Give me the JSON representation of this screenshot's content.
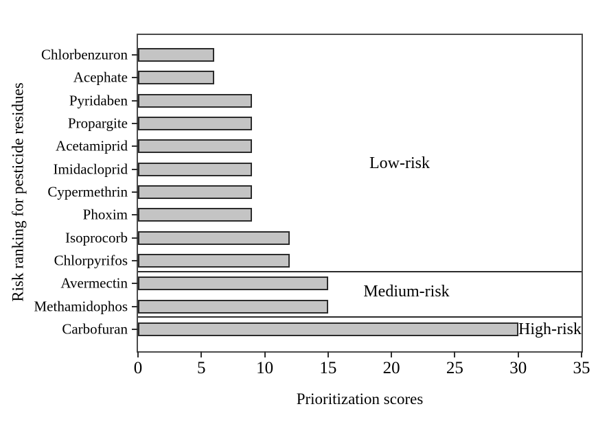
{
  "chart_data": {
    "type": "bar",
    "orientation": "horizontal",
    "title": "",
    "xlabel": "Prioritization scores",
    "ylabel": "Risk ranking for pesticide residues",
    "categories": [
      "Chlorbenzuron",
      "Acephate",
      "Pyridaben",
      "Propargite",
      "Acetamiprid",
      "Imidacloprid",
      "Cypermethrin",
      "Phoxim",
      "Isoprocorb",
      "Chlorpyrifos",
      "Avermectin",
      "Methamidophos",
      "Carbofuran"
    ],
    "values": [
      6,
      6,
      9,
      9,
      9,
      9,
      9,
      9,
      12,
      12,
      15,
      15,
      30
    ],
    "xlim": [
      0,
      35
    ],
    "xticks": [
      0,
      5,
      10,
      15,
      20,
      25,
      30,
      35
    ],
    "grid": false,
    "legend": false,
    "bar_fill_color": "#c4c4c4",
    "bar_border_color": "#2b2b2b",
    "zones": [
      {
        "label": "Low-risk",
        "from_category": "Chlorbenzuron",
        "to_category": "Chlorpyrifos",
        "end_index": 9
      },
      {
        "label": "Medium-risk",
        "from_category": "Avermectin",
        "to_category": "Methamidophos",
        "end_index": 11
      },
      {
        "label": "High-risk",
        "from_category": "Carbofuran",
        "to_category": "Carbofuran",
        "end_index": 12
      }
    ]
  }
}
